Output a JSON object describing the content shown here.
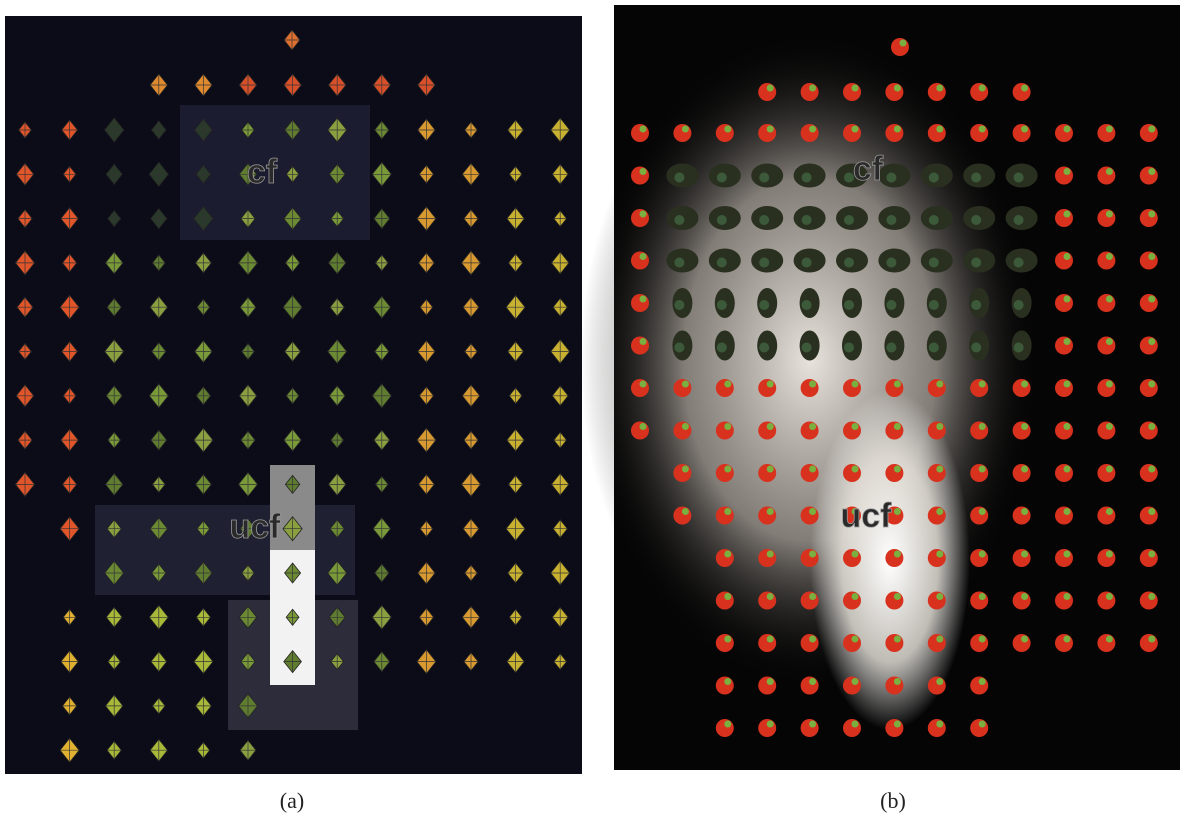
{
  "panels": [
    {
      "caption": "(a)",
      "labels": [
        "cf",
        "ucf"
      ]
    },
    {
      "caption": "(b)",
      "labels": [
        "cf",
        "ucf"
      ]
    }
  ]
}
